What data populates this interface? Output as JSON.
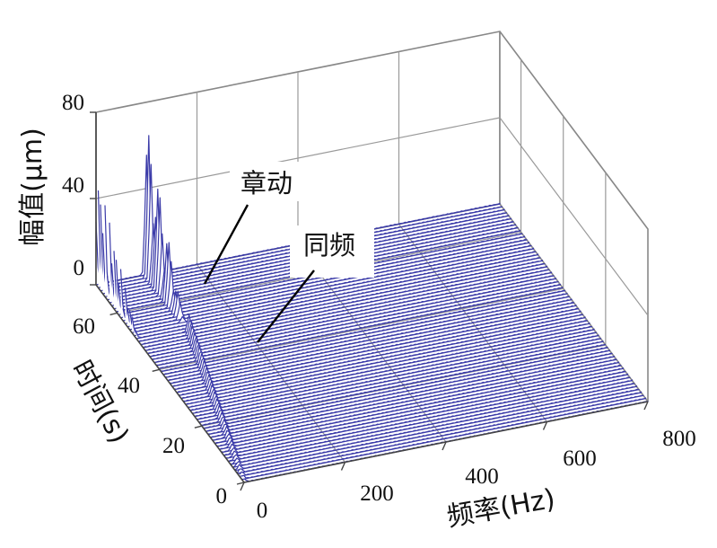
{
  "chart_data": {
    "type": "waterfall",
    "x_axis": {
      "label": "频率(Hz)",
      "range": [
        0,
        800
      ],
      "ticks": [
        "0",
        "200",
        "400",
        "600",
        "800"
      ]
    },
    "y_axis": {
      "label": "时间(s)",
      "range": [
        0,
        70
      ],
      "ticks": [
        "0",
        "20",
        "40",
        "60"
      ]
    },
    "z_axis": {
      "label": "幅值(μm)",
      "range": [
        0,
        80
      ],
      "ticks": [
        "0",
        "40",
        "80"
      ]
    },
    "grid": true,
    "line_color": "#3a3aa8",
    "peak_color": "#2ab0b0",
    "series": [
      {
        "frequency": 0,
        "time_range": [
          50,
          70
        ],
        "peak_amplitude": 55
      },
      {
        "frequency": 100,
        "time_range": [
          52,
          70
        ],
        "peak_amplitude": 70
      },
      {
        "frequency_range": [
          100,
          0
        ],
        "time_range": [
          50,
          0
        ],
        "peak_amplitude": 20
      }
    ],
    "annotations": [
      {
        "text": "章动"
      },
      {
        "text": "同频"
      }
    ]
  }
}
